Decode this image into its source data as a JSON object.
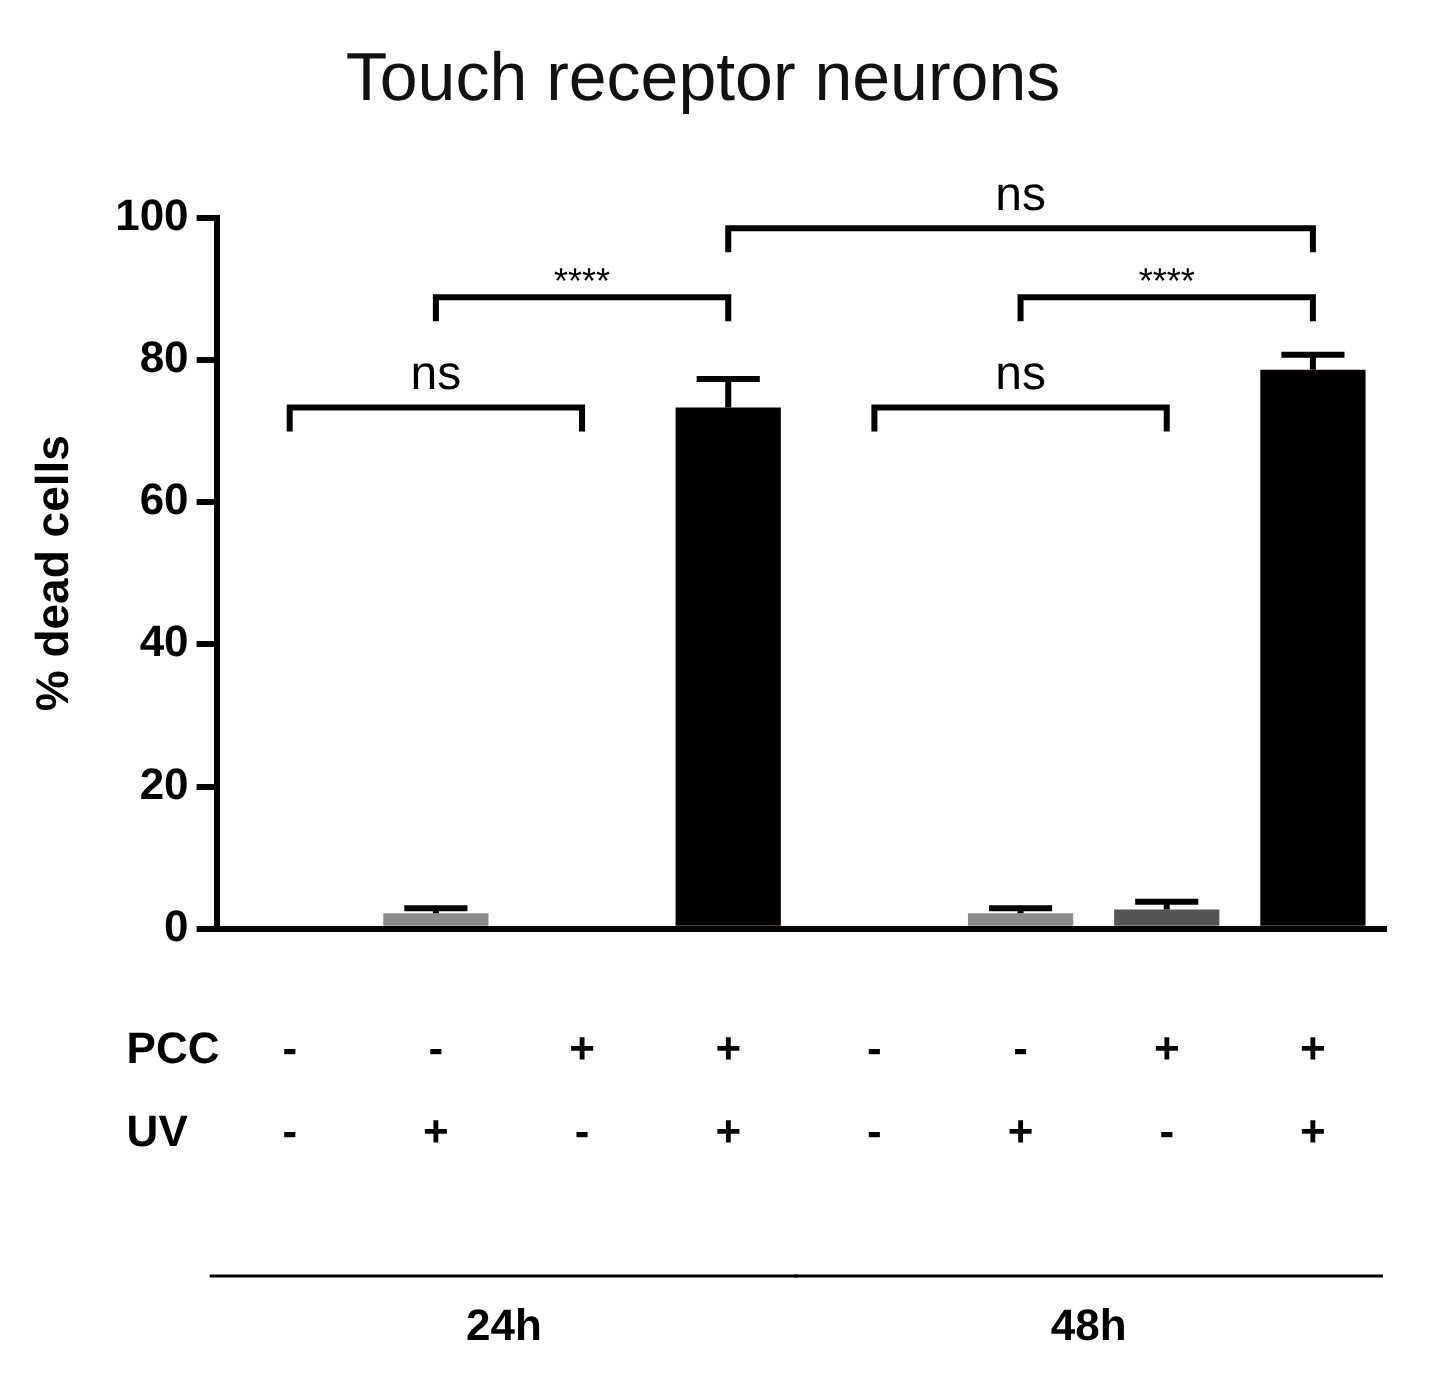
{
  "chart_data": {
    "type": "bar",
    "title": "Touch receptor neurons",
    "ylabel": "% dead cells",
    "categories": [
      "-\n-",
      "-\n+",
      "+\n-",
      "+\n+",
      "-\n-",
      "-\n+",
      "+\n-",
      "+\n+"
    ],
    "values": [
      0,
      2.2,
      0,
      73.3,
      0,
      2.2,
      2.7,
      78.6
    ],
    "errors": [
      null,
      0.7,
      null,
      4,
      null,
      0.7,
      1.1,
      2.1
    ],
    "colors": [
      "#000000",
      "#8c8c8c",
      "#000000",
      "#050000",
      "#000000",
      "#8c8c8c",
      "#555555",
      "#050000"
    ],
    "ylim": [
      0,
      100
    ],
    "yticks": [
      0,
      20,
      40,
      60,
      80,
      100
    ],
    "grid": false,
    "legend": false,
    "annotations": [
      "ns",
      "****",
      "****",
      "ns",
      "ns",
      "PCC",
      "UV",
      "24h",
      "48h"
    ]
  }
}
